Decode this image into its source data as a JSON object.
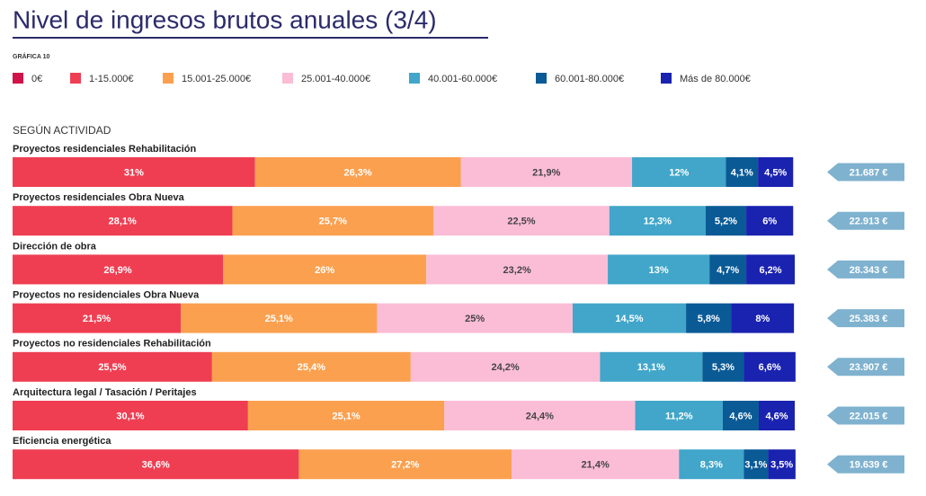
{
  "chart_data": {
    "type": "stacked-bar-horizontal",
    "title": "Nivel de ingresos brutos anuales (3/4)",
    "subtitle": "GRÁFICA 10",
    "section_label": "SEGÚN ACTIVIDAD",
    "categories": [
      "Proyectos residenciales Rehabilitación",
      "Proyectos residenciales Obra Nueva",
      "Dirección de obra",
      "Proyectos no residenciales Obra Nueva",
      "Proyectos no residenciales Rehabilitación",
      "Arquitectura legal / Tasación / Peritajes",
      "Eficiencia energética"
    ],
    "xlim": [
      0,
      100
    ],
    "series": [
      {
        "name": "0€",
        "color": "#d0144a",
        "values": [
          0,
          0,
          0,
          0,
          0,
          0,
          0
        ]
      },
      {
        "name": "1-15.000€",
        "color": "#ef3e52",
        "values": [
          31,
          28.1,
          26.9,
          21.5,
          25.5,
          30.1,
          36.6
        ],
        "value_labels": [
          "31%",
          "28,1%",
          "26,9%",
          "21,5%",
          "25,5%",
          "30,1%",
          "36,6%"
        ]
      },
      {
        "name": "15.001-25.000€",
        "color": "#fba04f",
        "values": [
          26.3,
          25.7,
          26,
          25.1,
          25.4,
          25.1,
          27.2
        ],
        "value_labels": [
          "26,3%",
          "25,7%",
          "26%",
          "25,1%",
          "25,4%",
          "25,1%",
          "27,2%"
        ]
      },
      {
        "name": "25.001-40.000€",
        "color": "#fbbdd6",
        "values": [
          21.9,
          22.5,
          23.2,
          25,
          24.2,
          24.4,
          21.4
        ],
        "value_labels": [
          "21,9%",
          "22,5%",
          "23,2%",
          "25%",
          "24,2%",
          "24,4%",
          "21,4%"
        ]
      },
      {
        "name": "40.001-60.000€",
        "color": "#41a6c9",
        "values": [
          12,
          12.3,
          13,
          14.5,
          13.1,
          11.2,
          8.3
        ],
        "value_labels": [
          "12%",
          "12,3%",
          "13%",
          "14,5%",
          "13,1%",
          "11,2%",
          "8,3%"
        ]
      },
      {
        "name": "60.001-80.000€",
        "color": "#0a5a96",
        "values": [
          4.1,
          5.2,
          4.7,
          5.8,
          5.3,
          4.6,
          3.1
        ],
        "value_labels": [
          "4,1%",
          "5,2%",
          "4,7%",
          "5,8%",
          "5,3%",
          "4,6%",
          "3,1%"
        ]
      },
      {
        "name": "Más de 80.000€",
        "color": "#1a22b0",
        "values": [
          4.5,
          6,
          6.2,
          8,
          6.6,
          4.6,
          3.5
        ],
        "value_labels": [
          "4,5%",
          "6%",
          "6,2%",
          "8%",
          "6,6%",
          "4,6%",
          "3,5%"
        ]
      }
    ],
    "average_labels": [
      "21.687 €",
      "22.913 €",
      "28.343 €",
      "25.383 €",
      "23.907 €",
      "22.015 €",
      "19.639 €"
    ]
  }
}
